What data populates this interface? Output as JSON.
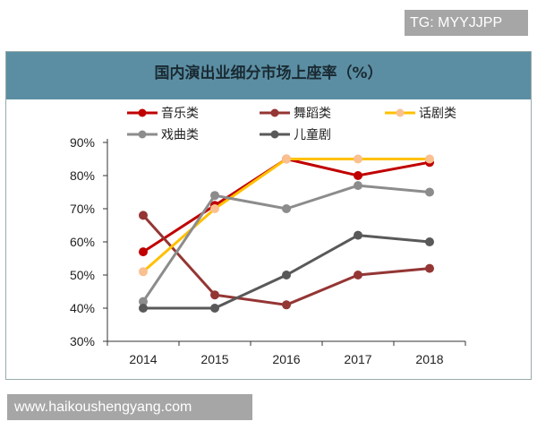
{
  "watermark_top": "TG: MYYJJPP",
  "watermark_bottom": "www.haikoushengyang.com",
  "chart_data": {
    "type": "line",
    "title": "国内演出业细分市场上座率（%）",
    "categories": [
      "2014",
      "2015",
      "2016",
      "2017",
      "2018"
    ],
    "ylim": [
      30,
      90
    ],
    "yticks": [
      "30%",
      "40%",
      "50%",
      "60%",
      "70%",
      "80%",
      "90%"
    ],
    "legend_position": "top",
    "grid": false,
    "series": [
      {
        "name": "音乐类",
        "color": "#c00000",
        "values": [
          57,
          71,
          85,
          80,
          84
        ]
      },
      {
        "name": "舞蹈类",
        "color": "#943634",
        "values": [
          68,
          44,
          41,
          50,
          52
        ]
      },
      {
        "name": "话剧类",
        "color": "#ffc000",
        "marker_color": "#fac090",
        "values": [
          51,
          70,
          85,
          85,
          85
        ]
      },
      {
        "name": "戏曲类",
        "color": "#8c8c8c",
        "values": [
          42,
          74,
          70,
          77,
          75
        ]
      },
      {
        "name": "儿童剧",
        "color": "#595959",
        "values": [
          40,
          40,
          50,
          62,
          60
        ]
      }
    ]
  }
}
